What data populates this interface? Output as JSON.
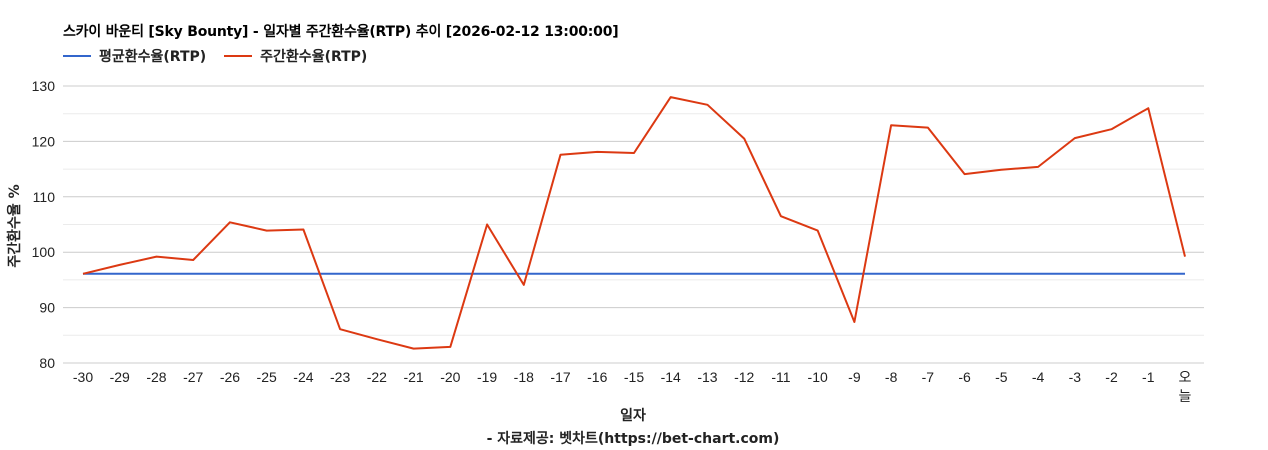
{
  "title": "스카이 바운티 [Sky Bounty] - 일자별 주간환수율(RTP) 추이 [2026-02-12 13:00:00]",
  "legend": [
    {
      "label": "평균환수율(RTP)",
      "color": "#3366cc"
    },
    {
      "label": "주간환수율(RTP)",
      "color": "#dc3912"
    }
  ],
  "axes": {
    "y_title": "주간환수율 %",
    "x_title": "일자"
  },
  "source": "- 자료제공: 벳차트(https://bet-chart.com)",
  "chart_data": {
    "type": "line",
    "title": "스카이 바운티 [Sky Bounty] - 일자별 주간환수율(RTP) 추이 [2026-02-12 13:00:00]",
    "xlabel": "일자",
    "ylabel": "주간환수율 %",
    "ylim": [
      80,
      130
    ],
    "yticks": [
      80,
      90,
      100,
      110,
      120,
      130
    ],
    "grid": true,
    "legend_position": "top",
    "categories": [
      "-30",
      "-29",
      "-28",
      "-27",
      "-26",
      "-25",
      "-24",
      "-23",
      "-22",
      "-21",
      "-20",
      "-19",
      "-18",
      "-17",
      "-16",
      "-15",
      "-14",
      "-13",
      "-12",
      "-11",
      "-10",
      "-9",
      "-8",
      "-7",
      "-6",
      "-5",
      "-4",
      "-3",
      "-2",
      "-1",
      "오늘"
    ],
    "series": [
      {
        "name": "평균환수율(RTP)",
        "color": "#3366cc",
        "values": [
          96.1,
          96.1,
          96.1,
          96.1,
          96.1,
          96.1,
          96.1,
          96.1,
          96.1,
          96.1,
          96.1,
          96.1,
          96.1,
          96.1,
          96.1,
          96.1,
          96.1,
          96.1,
          96.1,
          96.1,
          96.1,
          96.1,
          96.1,
          96.1,
          96.1,
          96.1,
          96.1,
          96.1,
          96.1,
          96.1,
          96.1
        ]
      },
      {
        "name": "주간환수율(RTP)",
        "color": "#dc3912",
        "values": [
          96.1,
          97.7,
          99.2,
          98.6,
          105.4,
          103.9,
          104.1,
          86.1,
          84.3,
          82.6,
          82.9,
          105.0,
          94.1,
          117.6,
          118.1,
          117.9,
          128.0,
          126.6,
          120.5,
          106.5,
          103.9,
          87.4,
          122.9,
          122.5,
          114.1,
          114.9,
          115.4,
          120.6,
          122.2,
          126.0,
          99.2
        ]
      }
    ]
  }
}
